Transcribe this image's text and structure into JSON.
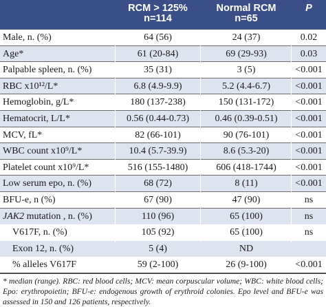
{
  "header": {
    "col1_line1": "RCM > 125%",
    "col1_line2": "n=114",
    "col2_line1": "Normal RCM",
    "col2_line2": "n=65",
    "col3": "P"
  },
  "rows": [
    {
      "label": "Male, n. (%)",
      "v1": "64 (56)",
      "v2": "24 (37)",
      "p": "0.02"
    },
    {
      "label": "Age*",
      "v1": "61 (20-84)",
      "v2": "69 (29-93)",
      "p": "0.03"
    },
    {
      "label": "Palpable spleen, n. (%)",
      "v1": "35 (31)",
      "v2": "3 (5)",
      "p": "<0.001"
    },
    {
      "label": "RBC x10¹²/L*",
      "v1": "6.8 (4.9-9.9)",
      "v2": "5.2 (4.4-6.7)",
      "p": "<0.001"
    },
    {
      "label": "Hemoglobin, g/L*",
      "v1": "180 (137-238)",
      "v2": "150 (131-172)",
      "p": "<0.001"
    },
    {
      "label": "Hematocrit, L/L*",
      "v1": "0.56 (0.44-0.73)",
      "v2": "0.46 (0.39-0.51)",
      "p": "<0.001"
    },
    {
      "label": "MCV, fL*",
      "v1": "82 (66-101)",
      "v2": "90 (76-101)",
      "p": "<0.001"
    },
    {
      "label": "WBC count x10⁹/L*",
      "v1": "10.4 (5.7-39.9)",
      "v2": "8.6 (5.3-20)",
      "p": "<0.001"
    },
    {
      "label": "Platelet count x10⁹/L*",
      "v1": "516 (155-1480)",
      "v2": "606 (418-1744)",
      "p": "<0.001"
    },
    {
      "label": "Low serum epo, n. (%)",
      "v1": "68 (72)",
      "v2": "8 (11)",
      "p": "<0.001"
    },
    {
      "label": "BFU-e, n (%)",
      "v1": "67 (90)",
      "v2": "47 (90)",
      "p": "ns"
    },
    {
      "label_italic": "JAK2",
      "label": " mutation , n. (%)",
      "v1": "110 (96)",
      "v2": "65 (100)",
      "p": "ns"
    },
    {
      "label": "V617F, n. (%)",
      "v1": "105 (92)",
      "v2": "65 (100)",
      "p": "ns"
    },
    {
      "label": "Exon 12, n. (%)",
      "v1": "5 (4)",
      "v2": "ND",
      "p": ""
    },
    {
      "label": "% alleles V617F",
      "v1": "59 (2-100)",
      "v2": "26 (9-100)",
      "p": "<0.001"
    }
  ],
  "footnote": "* median (range). RBC: red blood cells; MCV: mean corpuscular volume; WBC: white blood cells; Epo: erythropoietin; BFU-e: endogenous growth of erythroid colonies. Epo level and BFU-e was assessed in 150 and 126 patients, respectively.",
  "colors": {
    "header_bg": "#3a4f88",
    "stripe_bg": "#dde3ef"
  }
}
